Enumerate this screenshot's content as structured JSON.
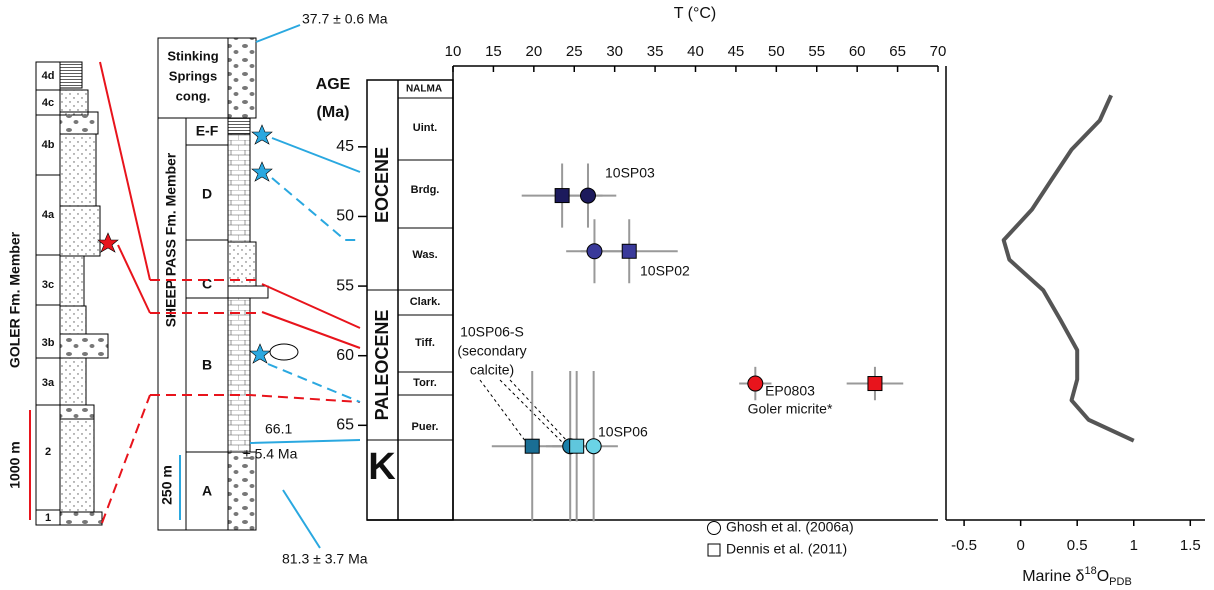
{
  "chart_data": [
    {
      "type": "scatter",
      "x_label": "T (°C)",
      "y_label_line1": "AGE",
      "y_label_line2": "(Ma)",
      "xlim": [
        10,
        70
      ],
      "xticks": [
        10,
        15,
        20,
        25,
        30,
        35,
        40,
        45,
        50,
        55,
        60,
        65,
        70
      ],
      "ylim": [
        40.2,
        71.8
      ],
      "yticks": [
        45,
        50,
        55,
        60,
        65
      ],
      "errorbar_color": "#999999",
      "series": [
        {
          "name": "Ghosh et al. (2006a)",
          "marker": "circle",
          "x": [
            26.7,
            27.5,
            24.5,
            27.4,
            47.4
          ],
          "y": [
            48.5,
            52.5,
            66.5,
            66.5,
            62
          ],
          "xerr": [
            3.5,
            3.5,
            3,
            3,
            2
          ],
          "yerr": [
            2.3,
            2.3,
            5.4,
            5.4,
            1.2
          ],
          "colors": [
            "#1c1a5c",
            "#3a3a9a",
            "#1a7fa8",
            "#6ad3e6",
            "#e8141c"
          ]
        },
        {
          "name": "Dennis et al. (2011)",
          "marker": "square",
          "x": [
            23.5,
            31.8,
            19.8,
            25.3,
            62.2
          ],
          "y": [
            48.5,
            52.5,
            66.5,
            66.5,
            62
          ],
          "xerr": [
            5,
            6,
            5,
            3,
            3.5
          ],
          "yerr": [
            2.3,
            2.3,
            5.4,
            5.4,
            1.2
          ],
          "colors": [
            "#1c1a5c",
            "#3a3a9a",
            "#1a6e94",
            "#5fc6dd",
            "#e8141c"
          ]
        }
      ],
      "annotations": [
        "10SP03",
        "10SP02",
        "10SP06",
        "10SP06-S",
        "(secondary",
        "calcite)",
        "EP0803",
        "Goler micrite*"
      ]
    },
    {
      "type": "line",
      "x_label": {
        "prefix": "Marine δ",
        "sup": "18",
        "mid": "O",
        "sub": "PDB"
      },
      "xlim": [
        -0.66,
        1.63
      ],
      "xticks": [
        -0.5,
        0,
        0.5,
        1,
        1.5
      ],
      "ylim": [
        40.2,
        71.8
      ],
      "color": "#555555",
      "y": [
        41.3,
        43.1,
        45.2,
        47.4,
        49.5,
        51.7,
        53.1,
        55.3,
        57.4,
        59.6,
        61.7,
        63.2,
        64.6,
        66.1
      ],
      "values": [
        0.8,
        0.7,
        0.45,
        0.27,
        0.1,
        -0.15,
        -0.1,
        0.2,
        0.35,
        0.5,
        0.5,
        0.45,
        0.6,
        1.0
      ]
    }
  ],
  "figure": {
    "nalma_header": "NALMA",
    "nalma": [
      "Uint.",
      "Brdg.",
      "Was.",
      "Clark.",
      "Tiff.",
      "Torr.",
      "Puer."
    ],
    "epochs": [
      "EOCENE",
      "PALEOCENE",
      "K"
    ],
    "dates": [
      "37.7 ± 0.6 Ma",
      "66.1",
      "± 5.4 Ma",
      "81.3 ± 3.7 Ma"
    ],
    "goler_units": [
      "4d",
      "4c",
      "4b",
      "4a",
      "3c",
      "3b",
      "3a",
      "2",
      "1"
    ],
    "goler_title": "GOLER Fm. Member",
    "goler_scale": "1000 m",
    "sheep_top_1": "Stinking",
    "sheep_top_2": "Springs",
    "sheep_top_3": "cong.",
    "sheep_units": [
      "E-F",
      "D",
      "C",
      "B",
      "A"
    ],
    "sheep_title": "SHEEP PASS Fm. Member",
    "sheep_scale": "250 m"
  }
}
